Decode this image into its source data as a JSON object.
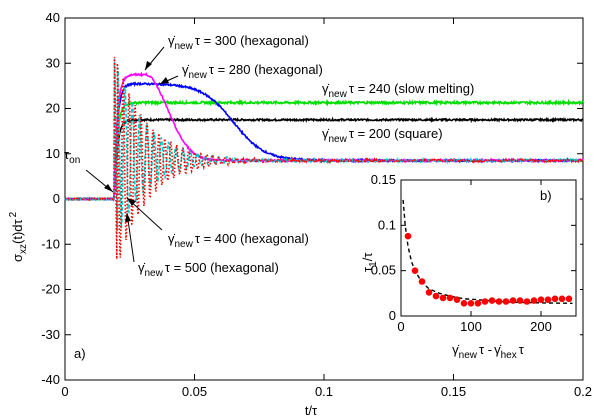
{
  "chart_data": [
    {
      "type": "line",
      "panel": "a)",
      "xlabel": "t/τ",
      "ylabel": "σ_xz(t)dτ²",
      "xlim": [
        0,
        0.2
      ],
      "ylim": [
        -40,
        40
      ],
      "x_ticks": [
        0,
        0.05,
        0.1,
        0.15,
        0.2
      ],
      "x_tick_labels": [
        "0",
        "0.05",
        "0.1",
        "0.15",
        "0.2"
      ],
      "y_ticks": [
        -40,
        -30,
        -20,
        -10,
        0,
        10,
        20,
        30,
        40
      ],
      "y_tick_labels": [
        "-40",
        "-30",
        "-20",
        "-10",
        "0",
        "10",
        "20",
        "30",
        "40"
      ],
      "grid": false,
      "legend": "none",
      "t_on": 0.019,
      "tau_on_label": "τ_on",
      "series": [
        {
          "name": "γ̇_new τ = 200 (square)",
          "color": "#000000",
          "style": "solid",
          "plateau": 17.5,
          "initial": 0
        },
        {
          "name": "γ̇_new τ = 240 (slow melting)",
          "color": "#00dd00",
          "style": "solid",
          "plateau": 21.3,
          "initial": 0
        },
        {
          "name": "γ̇_new τ = 280 (hexagonal)",
          "color": "#0000ff",
          "style": "solid",
          "plateau": 25.5,
          "final": 8.5,
          "melt_time": 0.065,
          "initial": 0
        },
        {
          "name": "γ̇_new τ = 300 (hexagonal)",
          "color": "#ff00ff",
          "style": "solid",
          "peak": 27.5,
          "peak_time": 0.031,
          "final": 8.5,
          "initial": 0
        },
        {
          "name": "γ̇_new τ = 400 (hexagonal)",
          "color": "#00cccc",
          "style": "dashed",
          "peak": 32,
          "trough": -10,
          "period": 0.0028,
          "final": 8.5,
          "initial": 0
        },
        {
          "name": "γ̇_new τ = 500 (hexagonal)",
          "color": "#ff0000",
          "style": "dotted",
          "peak": 33,
          "trough": -17.5,
          "period": 0.0023,
          "final": 8.5,
          "initial": 0
        }
      ],
      "annotations": [
        "γ̇_new τ = 300 (hexagonal)",
        "γ̇_new τ = 280 (hexagonal)",
        "γ̇_new τ = 240 (slow melting)",
        "γ̇_new τ = 200 (square)",
        "γ̇_new τ = 400 (hexagonal)",
        "γ̇_new τ = 500 (hexagonal)"
      ]
    },
    {
      "type": "scatter",
      "panel": "b)",
      "xlabel": "γ̇_new τ - γ̇_hex τ",
      "ylabel": "τ_1/τ",
      "xlim": [
        0,
        250
      ],
      "ylim": [
        0,
        0.15
      ],
      "x_ticks": [
        0,
        100,
        200
      ],
      "x_tick_labels": [
        "0",
        "100",
        "200"
      ],
      "y_ticks": [
        0,
        0.05,
        0.1,
        0.15
      ],
      "y_tick_labels": [
        "0",
        "0.05",
        "0.1",
        "0.15"
      ],
      "points": {
        "x": [
          10,
          20,
          30,
          40,
          50,
          60,
          70,
          80,
          90,
          100,
          110,
          120,
          130,
          140,
          150,
          160,
          170,
          180,
          190,
          200,
          210,
          220,
          230,
          240
        ],
        "y": [
          0.088,
          0.05,
          0.038,
          0.026,
          0.022,
          0.02,
          0.02,
          0.018,
          0.014,
          0.014,
          0.014,
          0.016,
          0.017,
          0.016,
          0.016,
          0.017,
          0.017,
          0.016,
          0.017,
          0.018,
          0.018,
          0.019,
          0.019,
          0.019
        ],
        "color": "#ff0000"
      },
      "fit": {
        "style": "dashed",
        "color": "#000000",
        "x": [
          3,
          6,
          10,
          15,
          20,
          30,
          40,
          55,
          70,
          90,
          110,
          140,
          170,
          200,
          245
        ],
        "y": [
          0.128,
          0.1,
          0.077,
          0.06,
          0.05,
          0.037,
          0.03,
          0.025,
          0.022,
          0.019,
          0.018,
          0.016,
          0.015,
          0.0145,
          0.014
        ]
      }
    }
  ],
  "labels": {
    "panel_a": "a)",
    "panel_b": "b)",
    "tau_on": "τ",
    "tau_on_sub": "on",
    "ylabel_main": "σ",
    "ylabel_sub": "xz",
    "ylabel_rest": "(t)dτ",
    "ylabel_sup": "2",
    "xlabel_main": "t/τ",
    "ann_300": {
      "gamma": "γ̇",
      "sub": "new",
      "rest": "τ = 300 (hexagonal)"
    },
    "ann_280": {
      "gamma": "γ̇",
      "sub": "new",
      "rest": "τ = 280 (hexagonal)"
    },
    "ann_240": {
      "gamma": "γ̇",
      "sub": "new",
      "rest": "τ = 240 (slow melting)"
    },
    "ann_200": {
      "gamma": "γ̇",
      "sub": "new",
      "rest": "τ = 200 (square)"
    },
    "ann_400": {
      "gamma": "γ̇",
      "sub": "new",
      "rest": "τ = 400 (hexagonal)"
    },
    "ann_500": {
      "gamma": "γ̇",
      "sub": "new",
      "rest": "τ = 500 (hexagonal)"
    },
    "inset_ylabel": "τ",
    "inset_ylabel_sub": "1",
    "inset_ylabel_rest": "/τ",
    "inset_xlabel_a": "γ̇",
    "inset_xlabel_a_sub": "new",
    "inset_xlabel_mid": "τ -",
    "inset_xlabel_b": "γ̇",
    "inset_xlabel_b_sub": "hex",
    "inset_xlabel_end": "τ"
  }
}
